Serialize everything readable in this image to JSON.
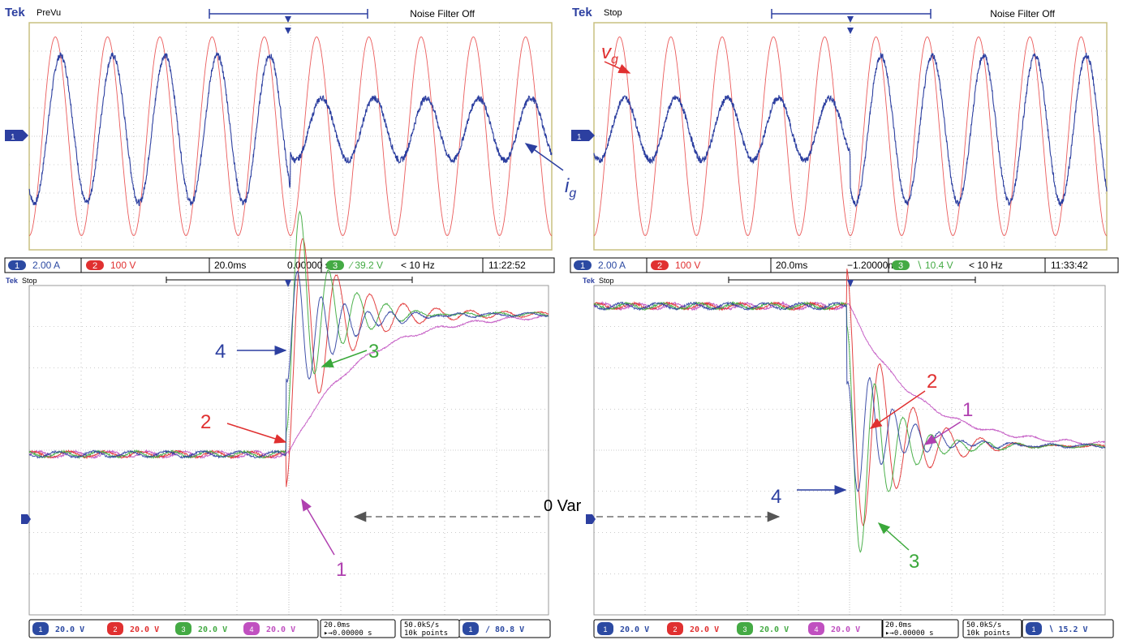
{
  "panels": [
    {
      "id": "tl",
      "brand": "Tek",
      "status": "PreVu",
      "noise_filter": "Noise Filter Off",
      "ch1_marker": "1",
      "readout": [
        {
          "badge": "1",
          "text": "2.00 A",
          "color": "#2c4aa2"
        },
        {
          "badge": "2",
          "text": "100 V",
          "color": "#e03030"
        },
        {
          "text": "20.0ms"
        },
        {
          "text": "0.00000 s"
        },
        {
          "badge": "3",
          "text": "∕ 39.2 V",
          "color": "#44aa44"
        },
        {
          "text": "< 10 Hz"
        },
        {
          "text": "11:22:52"
        }
      ]
    },
    {
      "id": "tr",
      "brand": "Tek",
      "status": "Stop",
      "noise_filter": "Noise Filter Off",
      "ch1_marker": "1",
      "readout": [
        {
          "badge": "1",
          "text": "2.00 A",
          "color": "#2c4aa2"
        },
        {
          "badge": "2",
          "text": "100 V",
          "color": "#e03030"
        },
        {
          "text": "20.0ms"
        },
        {
          "text": "−1.20000ms"
        },
        {
          "badge": "3",
          "text": "∖ 10.4 V",
          "color": "#44aa44"
        },
        {
          "text": "< 10 Hz"
        },
        {
          "text": "11:33:42"
        }
      ]
    },
    {
      "id": "bl",
      "brand": "Tek",
      "status": "Stop",
      "ch1_marker": "1",
      "readout": [
        {
          "badge": "1",
          "text": "20.0 V",
          "color": "#2c4aa2"
        },
        {
          "badge": "2",
          "text": "20.0 V",
          "color": "#e03030"
        },
        {
          "badge": "3",
          "text": "20.0 V",
          "color": "#44aa44"
        },
        {
          "badge": "4",
          "text": "20.0 V",
          "color": "#c050c0"
        },
        {
          "text": "20.0ms",
          "text2": "▸→0.00000 s"
        },
        {
          "text": "50.0kS/s",
          "text2": "10k points"
        },
        {
          "badge": "1",
          "text": "∕  80.8 V",
          "color": "#2c4aa2"
        }
      ]
    },
    {
      "id": "br",
      "brand": "Tek",
      "status": "Stop",
      "ch1_marker": "1",
      "readout": [
        {
          "badge": "1",
          "text": "20.0 V",
          "color": "#2c4aa2"
        },
        {
          "badge": "2",
          "text": "20.0 V",
          "color": "#e03030"
        },
        {
          "badge": "3",
          "text": "20.0 V",
          "color": "#44aa44"
        },
        {
          "badge": "4",
          "text": "20.0 V",
          "color": "#c050c0"
        },
        {
          "text": "20.0ms",
          "text2": "▸→0.00000 s"
        },
        {
          "text": "50.0kS/s",
          "text2": "10k points"
        },
        {
          "badge": "1",
          "text": "∖  15.2 V",
          "color": "#2c4aa2"
        }
      ]
    }
  ],
  "annotations": {
    "vg_main": "v",
    "vg_sub": "g",
    "ig_main": "i",
    "ig_sub": "g",
    "zero_var": "0 Var",
    "bl_labels": [
      "4",
      "3",
      "2",
      "1"
    ],
    "br_labels": [
      "2",
      "1",
      "4",
      "3"
    ]
  },
  "chart_data": [
    {
      "type": "line",
      "panel": "tl",
      "xlabel": "",
      "ylabel": "",
      "x_divisions": 10,
      "y_divisions": 8,
      "grid": true,
      "time_per_div": "20.0ms",
      "series": [
        {
          "name": "v_g",
          "channel": 2,
          "color": "#e84040",
          "waveform": "sine 50Hz",
          "amplitude_div": 3.5,
          "phase_offset_div": 0
        },
        {
          "name": "i_g",
          "channel": 1,
          "color": "#2c3fa0",
          "waveform": "sine 50Hz",
          "amplitude_before_div": 2.6,
          "amplitude_after_div": 1.1,
          "step_at_div": 5.0,
          "offset_div": 0
        }
      ]
    },
    {
      "type": "line",
      "panel": "tr",
      "xlabel": "",
      "ylabel": "",
      "x_divisions": 10,
      "y_divisions": 8,
      "grid": true,
      "time_per_div": "20.0ms",
      "series": [
        {
          "name": "v_g",
          "channel": 2,
          "color": "#e84040",
          "waveform": "sine 50Hz",
          "amplitude_div": 3.5
        },
        {
          "name": "i_g",
          "channel": 1,
          "color": "#2c3fa0",
          "waveform": "sine 50Hz",
          "amplitude_before_div": 1.1,
          "amplitude_after_div": 2.6,
          "step_at_div": 5.0
        }
      ]
    },
    {
      "type": "line",
      "panel": "bl",
      "xlabel": "",
      "ylabel": "",
      "x_divisions": 10,
      "y_divisions": 8,
      "grid": true,
      "time_per_div": "20.0ms",
      "series": [
        {
          "name": "1",
          "channel": 4,
          "color": "#c050c0",
          "response": "slow rise",
          "from_div": -0.1,
          "to_div": 3.3,
          "step_at_div": 5.0
        },
        {
          "name": "2",
          "channel": 2,
          "color": "#e03030",
          "response": "damped oscillation",
          "from_div": -0.1,
          "to_div": 3.3,
          "step_at_div": 5.0
        },
        {
          "name": "3",
          "channel": 3,
          "color": "#3aa83a",
          "response": "fast with overshoot",
          "from_div": -0.1,
          "to_div": 3.3,
          "step_at_div": 5.0
        },
        {
          "name": "4",
          "channel": 1,
          "color": "#2c3fa0",
          "response": "fastest, peak",
          "from_div": -0.1,
          "to_div": 3.3,
          "step_at_div": 5.0
        }
      ]
    },
    {
      "type": "line",
      "panel": "br",
      "xlabel": "",
      "ylabel": "",
      "x_divisions": 10,
      "y_divisions": 8,
      "grid": true,
      "time_per_div": "20.0ms",
      "series": [
        {
          "name": "1",
          "channel": 4,
          "color": "#c050c0",
          "response": "slow fall",
          "from_div": 3.5,
          "to_div": 0.1,
          "step_at_div": 5.0
        },
        {
          "name": "2",
          "channel": 2,
          "color": "#e03030",
          "response": "damped oscillation",
          "from_div": 3.5,
          "to_div": 0.1,
          "step_at_div": 5.0
        },
        {
          "name": "3",
          "channel": 3,
          "color": "#3aa83a",
          "response": "fast with undershoot",
          "from_div": 3.5,
          "to_div": 0.1,
          "step_at_div": 5.0
        },
        {
          "name": "4",
          "channel": 1,
          "color": "#2c3fa0",
          "response": "fastest, dip",
          "from_div": 3.5,
          "to_div": 0.1,
          "step_at_div": 5.0
        }
      ]
    }
  ]
}
